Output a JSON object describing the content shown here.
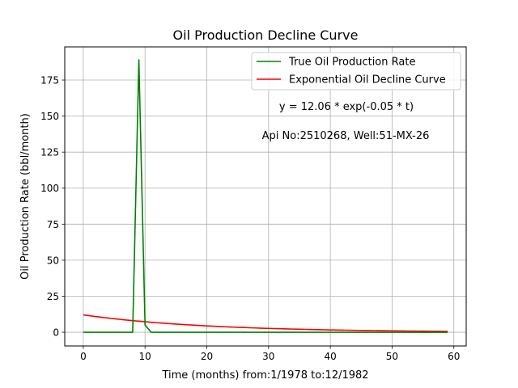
{
  "chart_data": {
    "type": "line",
    "title": "Oil Production Decline Curve",
    "xlabel": "Time (months) from:1/1978 to:12/1982",
    "ylabel": "Oil Production Rate (bbl/month)",
    "xlim": [
      -3,
      62
    ],
    "ylim": [
      -9.5,
      198
    ],
    "x_ticks": [
      0,
      10,
      20,
      30,
      40,
      50,
      60
    ],
    "y_ticks": [
      0,
      25,
      50,
      75,
      100,
      125,
      150,
      175
    ],
    "grid": true,
    "legend_position": "top-right",
    "annotations": [
      "y = 12.06 * exp(-0.05 * t)",
      "Api No:2510268, Well:51-MX-26"
    ],
    "series": [
      {
        "name": "True Oil Production Rate",
        "color": "#008000",
        "x": [
          0,
          1,
          2,
          3,
          4,
          5,
          6,
          7,
          8,
          9,
          10,
          11,
          12,
          13,
          14,
          15,
          16,
          17,
          18,
          19,
          20,
          21,
          22,
          23,
          24,
          25,
          26,
          27,
          28,
          29,
          30,
          31,
          32,
          33,
          34,
          35,
          36,
          37,
          38,
          39,
          40,
          41,
          42,
          43,
          44,
          45,
          46,
          47,
          48,
          49,
          50,
          51,
          52,
          53,
          54,
          55,
          56,
          57,
          58,
          59
        ],
        "y": [
          0,
          0,
          0,
          0,
          0,
          0,
          0,
          0,
          0,
          189,
          5,
          0,
          0,
          0,
          0,
          0,
          0,
          0,
          0,
          0,
          0,
          0,
          0,
          0,
          0,
          0,
          0,
          0,
          0,
          0,
          0,
          0,
          0,
          0,
          0,
          0,
          0,
          0,
          0,
          0,
          0,
          0,
          0,
          0,
          0,
          0,
          0,
          0,
          0,
          0,
          0,
          0,
          0,
          0,
          0,
          0,
          0,
          0,
          0,
          0
        ]
      },
      {
        "name": "Exponential Oil Decline Curve",
        "color": "#ff0000",
        "model": {
          "a": 12.06,
          "b": 0.05,
          "t_start": 0,
          "t_end": 59
        }
      }
    ]
  }
}
